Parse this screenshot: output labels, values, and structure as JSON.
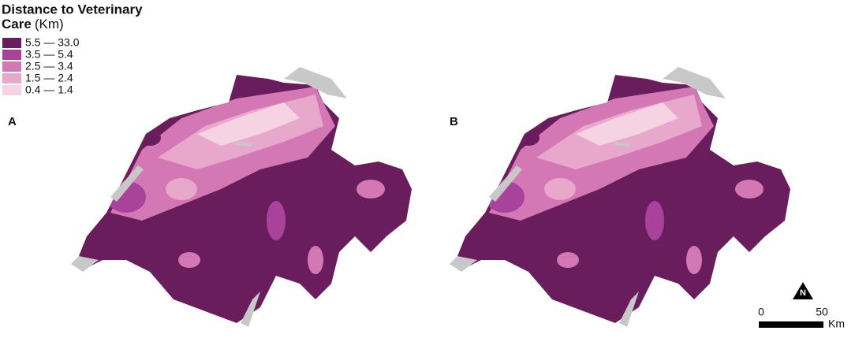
{
  "legend": {
    "title_lines": [
      "Distance to Veterinary",
      "Care"
    ],
    "unit": "(Km)",
    "items": [
      {
        "label": "5.5 — 33.0",
        "color": "#6a1d5c"
      },
      {
        "label": "3.5 — 5.4",
        "color": "#a8429a"
      },
      {
        "label": "2.5 — 3.4",
        "color": "#d377b5"
      },
      {
        "label": "1.5 — 2.4",
        "color": "#e8a8cb"
      },
      {
        "label": "0.4 — 1.4",
        "color": "#f5d3e2"
      }
    ]
  },
  "panels": [
    {
      "label": "A"
    },
    {
      "label": "B"
    }
  ],
  "north": "N",
  "scale_bar": {
    "ticks": [
      "0",
      "50"
    ],
    "unit": "Km"
  }
}
